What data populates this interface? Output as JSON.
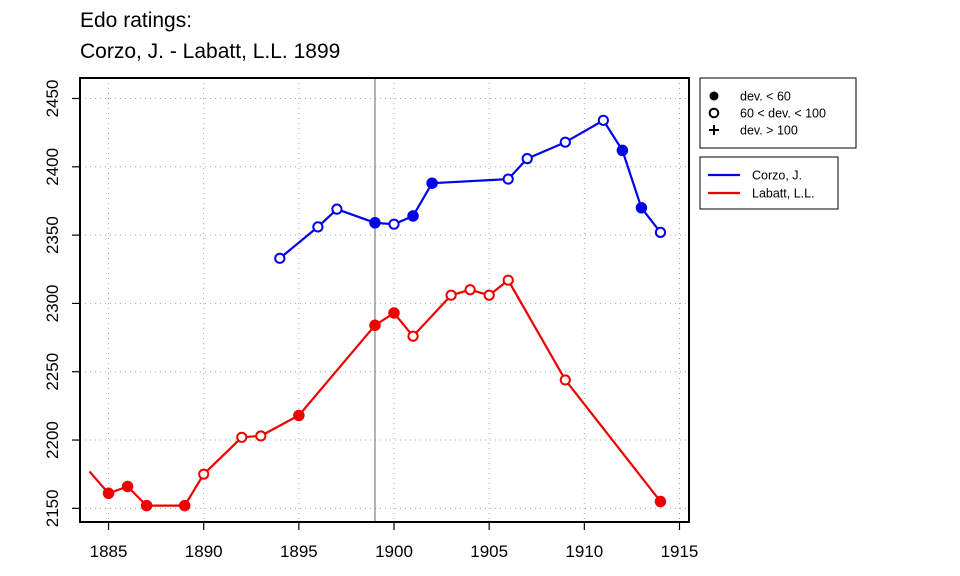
{
  "chart_data": {
    "type": "line",
    "title": "Edo ratings:",
    "subtitle": "Corzo, J. - Labatt, L.L. 1899",
    "xlim": [
      1883.5,
      1915.5
    ],
    "ylim": [
      2140,
      2465
    ],
    "x_ticks": [
      1885,
      1890,
      1895,
      1900,
      1905,
      1910,
      1915
    ],
    "y_ticks": [
      2150,
      2200,
      2250,
      2300,
      2350,
      2400,
      2450
    ],
    "grid": true,
    "reference_year": 1899,
    "marker_legend": [
      {
        "marker": "filled",
        "label": "dev. < 60"
      },
      {
        "marker": "open",
        "label": "60 < dev. < 100"
      },
      {
        "marker": "plus",
        "label": "dev. > 100"
      }
    ],
    "series": [
      {
        "name": "Corzo, J.",
        "color": "#0000ee",
        "points": [
          {
            "x": 1894,
            "y": 2333,
            "marker": "open"
          },
          {
            "x": 1896,
            "y": 2356,
            "marker": "open"
          },
          {
            "x": 1897,
            "y": 2369,
            "marker": "open"
          },
          {
            "x": 1899,
            "y": 2359,
            "marker": "filled"
          },
          {
            "x": 1900,
            "y": 2358,
            "marker": "open"
          },
          {
            "x": 1901,
            "y": 2364,
            "marker": "filled"
          },
          {
            "x": 1902,
            "y": 2388,
            "marker": "filled"
          },
          {
            "x": 1906,
            "y": 2391,
            "marker": "open"
          },
          {
            "x": 1907,
            "y": 2406,
            "marker": "open"
          },
          {
            "x": 1909,
            "y": 2418,
            "marker": "open"
          },
          {
            "x": 1911,
            "y": 2434,
            "marker": "open"
          },
          {
            "x": 1912,
            "y": 2412,
            "marker": "filled"
          },
          {
            "x": 1913,
            "y": 2370,
            "marker": "filled"
          },
          {
            "x": 1914,
            "y": 2352,
            "marker": "open"
          }
        ]
      },
      {
        "name": "Labatt, L.L.",
        "color": "#ee0000",
        "points": [
          {
            "x": 1884,
            "y": 2177,
            "marker": "none"
          },
          {
            "x": 1885,
            "y": 2161,
            "marker": "filled"
          },
          {
            "x": 1886,
            "y": 2166,
            "marker": "filled"
          },
          {
            "x": 1887,
            "y": 2152,
            "marker": "filled"
          },
          {
            "x": 1889,
            "y": 2152,
            "marker": "filled"
          },
          {
            "x": 1890,
            "y": 2175,
            "marker": "open"
          },
          {
            "x": 1892,
            "y": 2202,
            "marker": "open"
          },
          {
            "x": 1893,
            "y": 2203,
            "marker": "open"
          },
          {
            "x": 1895,
            "y": 2218,
            "marker": "filled"
          },
          {
            "x": 1899,
            "y": 2284,
            "marker": "filled"
          },
          {
            "x": 1900,
            "y": 2293,
            "marker": "filled"
          },
          {
            "x": 1901,
            "y": 2276,
            "marker": "open"
          },
          {
            "x": 1903,
            "y": 2306,
            "marker": "open"
          },
          {
            "x": 1904,
            "y": 2310,
            "marker": "open"
          },
          {
            "x": 1905,
            "y": 2306,
            "marker": "open"
          },
          {
            "x": 1906,
            "y": 2317,
            "marker": "open"
          },
          {
            "x": 1909,
            "y": 2244,
            "marker": "open"
          },
          {
            "x": 1914,
            "y": 2155,
            "marker": "filled"
          }
        ]
      }
    ]
  }
}
